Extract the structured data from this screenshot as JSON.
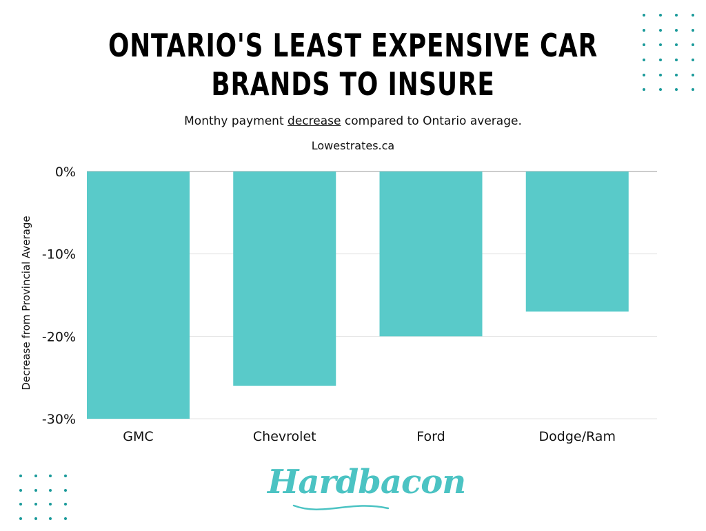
{
  "header": {
    "title_line1": "ONTARIO'S LEAST EXPENSIVE CAR",
    "title_line2": "BRANDS TO INSURE",
    "subtitle_before": "Monthy payment ",
    "subtitle_underlined": "decrease",
    "subtitle_after": " compared to Ontario average.",
    "source": "Lowestrates.ca"
  },
  "brand": {
    "logo_text": "Hardbacon",
    "logo_color": "#4bc3c3"
  },
  "colors": {
    "bar": "#59cac9",
    "dots": "#1a9a9a",
    "grid": "#e3e3e3",
    "text": "#111111"
  },
  "chart_data": {
    "type": "bar",
    "categories": [
      "GMC",
      "Chevrolet",
      "Ford",
      "Dodge/Ram"
    ],
    "series": [
      {
        "values": [
          -30,
          -26,
          -20,
          -17
        ]
      }
    ],
    "ylabel": "Decrease  from Provincial Average",
    "xlabel": "",
    "ylim": [
      -30,
      0
    ],
    "yticks": [
      0,
      -10,
      -20,
      -30
    ],
    "ytick_labels": [
      "0%",
      "-10%",
      "-20%",
      "-30%"
    ],
    "grid": true,
    "legend": "none"
  }
}
